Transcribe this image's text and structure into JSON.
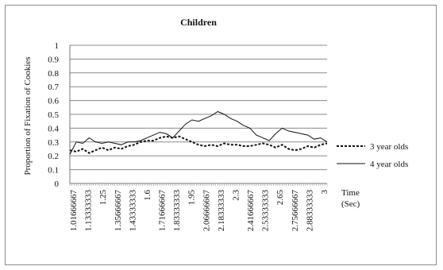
{
  "chart_data": {
    "type": "line",
    "title": "Children",
    "ylabel": "Proportion of Fixation of Cookies",
    "xlabel_line1": "Time",
    "xlabel_line2": "(Sec)",
    "ylim": [
      0,
      1
    ],
    "yticks": [
      "0",
      "0.1",
      "0.2",
      "0.3",
      "0.4",
      "0.5",
      "0.6",
      "0.7",
      "0.8",
      "0.9",
      "1"
    ],
    "xlim": [
      1,
      3
    ],
    "xtick_labels": [
      "1.01666667",
      "1.13333333",
      "1.25",
      "1.35666667",
      "1.43333333",
      "1.6",
      "1.71666667",
      "1.83333333",
      "1.95",
      "2.06666667",
      "2.18333333",
      "2.3",
      "2.41666667",
      "2.53333333",
      "2.65",
      "2.75666667",
      "2.88333333",
      "3"
    ],
    "grid": true,
    "legend_position": "right",
    "series": [
      {
        "name": "3 year olds",
        "style": "dashed",
        "x": [
          1.0,
          1.05,
          1.1,
          1.15,
          1.2,
          1.25,
          1.3,
          1.35,
          1.4,
          1.45,
          1.5,
          1.55,
          1.6,
          1.65,
          1.7,
          1.75,
          1.8,
          1.85,
          1.9,
          1.95,
          2.0,
          2.05,
          2.1,
          2.15,
          2.2,
          2.25,
          2.3,
          2.35,
          2.4,
          2.45,
          2.5,
          2.55,
          2.6,
          2.65,
          2.7,
          2.75,
          2.8,
          2.85,
          2.9,
          2.95,
          3.0
        ],
        "y": [
          0.24,
          0.23,
          0.25,
          0.22,
          0.24,
          0.26,
          0.24,
          0.26,
          0.25,
          0.27,
          0.28,
          0.3,
          0.31,
          0.31,
          0.33,
          0.34,
          0.33,
          0.34,
          0.32,
          0.3,
          0.28,
          0.27,
          0.28,
          0.27,
          0.29,
          0.28,
          0.28,
          0.27,
          0.27,
          0.28,
          0.29,
          0.28,
          0.26,
          0.28,
          0.25,
          0.24,
          0.25,
          0.27,
          0.26,
          0.28,
          0.29
        ]
      },
      {
        "name": "4 year olds",
        "style": "solid",
        "x": [
          1.0,
          1.05,
          1.1,
          1.15,
          1.2,
          1.25,
          1.3,
          1.35,
          1.4,
          1.45,
          1.5,
          1.55,
          1.6,
          1.65,
          1.7,
          1.75,
          1.8,
          1.85,
          1.9,
          1.95,
          2.0,
          2.05,
          2.1,
          2.15,
          2.2,
          2.25,
          2.3,
          2.35,
          2.4,
          2.45,
          2.5,
          2.55,
          2.6,
          2.65,
          2.7,
          2.75,
          2.8,
          2.85,
          2.9,
          2.95,
          3.0
        ],
        "y": [
          0.21,
          0.3,
          0.29,
          0.33,
          0.3,
          0.29,
          0.3,
          0.29,
          0.28,
          0.3,
          0.3,
          0.31,
          0.33,
          0.35,
          0.37,
          0.36,
          0.33,
          0.38,
          0.43,
          0.46,
          0.45,
          0.47,
          0.49,
          0.52,
          0.5,
          0.47,
          0.45,
          0.42,
          0.4,
          0.35,
          0.33,
          0.31,
          0.36,
          0.4,
          0.38,
          0.37,
          0.36,
          0.35,
          0.32,
          0.33,
          0.3
        ]
      }
    ]
  }
}
